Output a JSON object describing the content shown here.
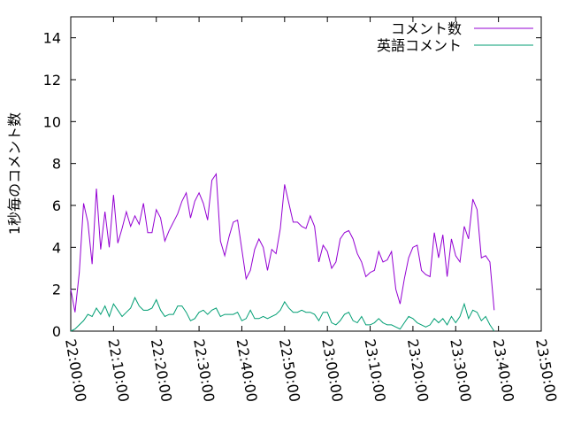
{
  "chart_data": {
    "type": "line",
    "title": "",
    "xlabel": "",
    "ylabel": "1秒毎のコメント数",
    "ylim": [
      0,
      15
    ],
    "yticks": [
      "0",
      "2",
      "4",
      "6",
      "8",
      "10",
      "12",
      "14"
    ],
    "ytick_values": [
      0,
      2,
      4,
      6,
      8,
      10,
      12,
      14
    ],
    "xlim": [
      "22:00:00",
      "23:50:00"
    ],
    "xticks": [
      "22:00:00",
      "22:10:00",
      "22:20:00",
      "22:30:00",
      "22:40:00",
      "22:50:00",
      "23:00:00",
      "23:10:00",
      "23:20:00",
      "23:30:00",
      "23:40:00",
      "23:50:00"
    ],
    "xtick_minutes": [
      0,
      10,
      20,
      30,
      40,
      50,
      60,
      70,
      80,
      90,
      100,
      110
    ],
    "x_step_minutes": 1,
    "legend_position": "top-right",
    "grid": false,
    "series": [
      {
        "name": "コメント数",
        "color": "#9400d3",
        "values": [
          2.0,
          0.9,
          2.8,
          6.1,
          5.2,
          3.2,
          6.8,
          3.9,
          5.7,
          4.0,
          6.5,
          4.2,
          4.9,
          5.7,
          5.0,
          5.5,
          5.1,
          6.1,
          4.7,
          4.7,
          5.8,
          5.4,
          4.3,
          4.8,
          5.2,
          5.6,
          6.2,
          6.6,
          5.4,
          6.2,
          6.6,
          6.1,
          5.3,
          7.2,
          7.5,
          4.3,
          3.6,
          4.5,
          5.2,
          5.3,
          3.9,
          2.5,
          2.9,
          3.9,
          4.4,
          4.0,
          2.9,
          3.9,
          3.7,
          4.9,
          7.0,
          6.1,
          5.2,
          5.2,
          5.0,
          4.9,
          5.5,
          5.0,
          3.3,
          4.1,
          3.8,
          3.0,
          3.3,
          4.4,
          4.7,
          4.8,
          4.4,
          3.7,
          3.3,
          2.6,
          2.8,
          2.9,
          3.8,
          3.3,
          3.4,
          3.8,
          2.0,
          1.3,
          2.5,
          3.5,
          4.0,
          4.1,
          2.9,
          2.7,
          2.6,
          4.7,
          3.5,
          4.6,
          2.6,
          4.4,
          3.6,
          3.3,
          5.0,
          4.4,
          6.3,
          5.8,
          3.5,
          3.6,
          3.3,
          1.0
        ]
      },
      {
        "name": "英語コメント",
        "color": "#009e73",
        "values": [
          0.0,
          0.1,
          0.3,
          0.5,
          0.8,
          0.7,
          1.1,
          0.8,
          1.2,
          0.7,
          1.3,
          1.0,
          0.7,
          0.9,
          1.1,
          1.6,
          1.2,
          1.0,
          1.0,
          1.1,
          1.5,
          1.0,
          0.7,
          0.8,
          0.8,
          1.2,
          1.2,
          0.9,
          0.5,
          0.6,
          0.9,
          1.0,
          0.8,
          1.0,
          1.1,
          0.7,
          0.8,
          0.8,
          0.8,
          0.9,
          0.5,
          0.6,
          1.0,
          0.6,
          0.6,
          0.7,
          0.6,
          0.7,
          0.8,
          1.0,
          1.4,
          1.1,
          0.9,
          0.9,
          1.0,
          0.9,
          0.9,
          0.8,
          0.5,
          0.9,
          0.9,
          0.4,
          0.3,
          0.5,
          0.8,
          0.9,
          0.5,
          0.4,
          0.7,
          0.3,
          0.3,
          0.4,
          0.6,
          0.4,
          0.3,
          0.3,
          0.2,
          0.1,
          0.4,
          0.7,
          0.6,
          0.4,
          0.3,
          0.2,
          0.3,
          0.6,
          0.4,
          0.6,
          0.3,
          0.7,
          0.4,
          0.7,
          1.3,
          0.6,
          1.0,
          0.9,
          0.5,
          0.7,
          0.3,
          0.0
        ]
      }
    ]
  }
}
